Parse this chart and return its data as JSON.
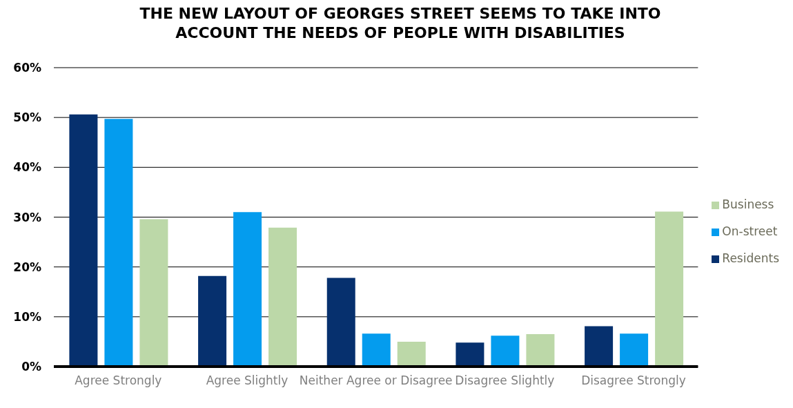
{
  "chart_data": {
    "type": "bar",
    "title": "THE NEW LAYOUT OF GEORGES STREET SEEMS TO TAKE INTO ACCOUNT THE NEEDS OF PEOPLE WITH DISABILITIES",
    "categories": [
      "Agree Strongly",
      "Agree Slightly",
      "Neither Agree or Disagree",
      "Disagree Slightly",
      "Disagree Strongly"
    ],
    "series": [
      {
        "name": "Residents",
        "color": "#06306e",
        "values": [
          50.6,
          18.2,
          17.8,
          4.8,
          8.1
        ]
      },
      {
        "name": "On-street",
        "color": "#049cee",
        "values": [
          49.7,
          31.0,
          6.6,
          6.2,
          6.6
        ]
      },
      {
        "name": "Business",
        "color": "#bcd8a8",
        "values": [
          29.6,
          27.9,
          5.0,
          6.5,
          31.1
        ]
      }
    ],
    "ylim": [
      0,
      60
    ],
    "yticks": [
      {
        "value": 0,
        "label": "0%"
      },
      {
        "value": 10,
        "label": "10%"
      },
      {
        "value": 20,
        "label": "20%"
      },
      {
        "value": 30,
        "label": "30%"
      },
      {
        "value": 40,
        "label": "40%"
      },
      {
        "value": 50,
        "label": "50%"
      },
      {
        "value": 60,
        "label": "60%"
      }
    ],
    "grid": "y",
    "legend": "right"
  }
}
